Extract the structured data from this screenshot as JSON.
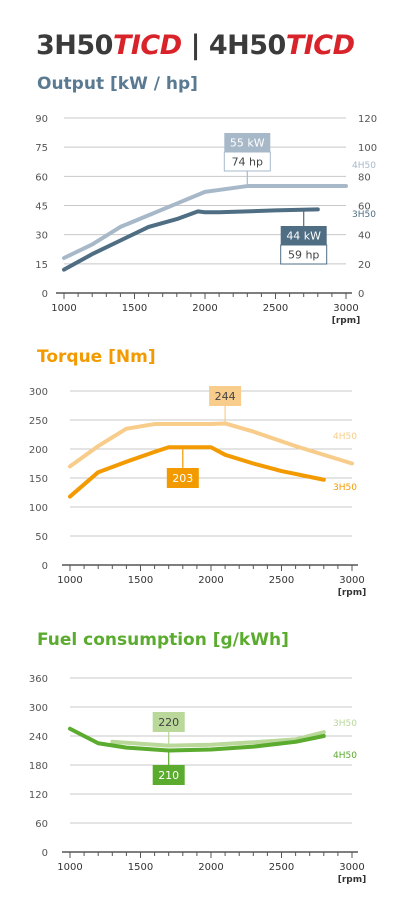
{
  "header": {
    "model_a": "3H50",
    "suffix_a": "TICD",
    "separator": " | ",
    "model_b": "4H50",
    "suffix_b": "TICD"
  },
  "colors": {
    "header_red": "#d8232a",
    "axis": "#555555",
    "grid": "#c8c8c8",
    "output_title": "#5a7a92",
    "output_4h50": "#a7b9c8",
    "output_3h50": "#4f6d83",
    "torque_title": "#f29a00",
    "torque_4h50": "#f8cc8a",
    "torque_3h50": "#f29a00",
    "fuel_title": "#5aab2e",
    "fuel_3h50": "#b9d89a",
    "fuel_4h50": "#5aab2e"
  },
  "chart_data": [
    {
      "type": "line",
      "title": "Output [kW / hp]",
      "xlabel": "[rpm]",
      "xlim": [
        1000,
        3000
      ],
      "x_ticks": [
        1000,
        1500,
        2000,
        2500,
        3000
      ],
      "ylim": [
        0,
        90
      ],
      "y_ticks": [
        0,
        15,
        30,
        45,
        60,
        75,
        90
      ],
      "y2lim": [
        0,
        120
      ],
      "y2_ticks": [
        0,
        20,
        40,
        60,
        80,
        100,
        120
      ],
      "grid": true,
      "series": [
        {
          "name": "4H50",
          "x": [
            1000,
            1200,
            1400,
            1600,
            1800,
            2000,
            2100,
            2300,
            2500,
            2800,
            3000
          ],
          "values": [
            18,
            25,
            34,
            40,
            46,
            52,
            53,
            55,
            55,
            55,
            55
          ]
        },
        {
          "name": "3H50",
          "x": [
            1000,
            1200,
            1400,
            1600,
            1800,
            1950,
            2000,
            2100,
            2300,
            2500,
            2800
          ],
          "values": [
            12,
            20,
            27,
            34,
            38,
            42,
            41.5,
            41.5,
            42,
            42.5,
            43
          ]
        }
      ],
      "annotations": [
        {
          "series": "4H50",
          "x": 2300,
          "primary": "55 kW",
          "secondary": "74 hp"
        },
        {
          "series": "3H50",
          "x": 2700,
          "primary": "44 kW",
          "secondary": "59 hp"
        }
      ]
    },
    {
      "type": "line",
      "title": "Torque [Nm]",
      "xlabel": "[rpm]",
      "xlim": [
        1000,
        3000
      ],
      "x_ticks": [
        1000,
        1500,
        2000,
        2500,
        3000
      ],
      "ylim": [
        0,
        300
      ],
      "y_ticks": [
        0,
        50,
        100,
        150,
        200,
        250,
        300
      ],
      "grid": true,
      "series": [
        {
          "name": "4H50",
          "x": [
            1000,
            1200,
            1400,
            1600,
            1800,
            2000,
            2100,
            2300,
            2600,
            3000
          ],
          "values": [
            170,
            205,
            235,
            243,
            243,
            243,
            244,
            230,
            205,
            175
          ]
        },
        {
          "name": "3H50",
          "x": [
            1000,
            1200,
            1400,
            1600,
            1700,
            1800,
            2000,
            2100,
            2300,
            2500,
            2800
          ],
          "values": [
            118,
            160,
            178,
            195,
            203,
            203,
            203,
            190,
            175,
            162,
            147
          ]
        }
      ],
      "annotations": [
        {
          "series": "4H50",
          "x": 2100,
          "primary": "244"
        },
        {
          "series": "3H50",
          "x": 1800,
          "primary": "203"
        }
      ]
    },
    {
      "type": "line",
      "title": "Fuel consumption [g/kWh]",
      "xlabel": "[rpm]",
      "xlim": [
        1000,
        3000
      ],
      "x_ticks": [
        1000,
        1500,
        2000,
        2500,
        3000
      ],
      "ylim": [
        0,
        360
      ],
      "y_ticks": [
        0,
        60,
        120,
        180,
        240,
        300,
        360
      ],
      "grid": true,
      "series": [
        {
          "name": "3H50",
          "x": [
            1300,
            1500,
            1700,
            2000,
            2300,
            2600,
            2800
          ],
          "values": [
            228,
            224,
            220,
            222,
            227,
            233,
            248
          ]
        },
        {
          "name": "4H50",
          "x": [
            1000,
            1200,
            1400,
            1700,
            2000,
            2300,
            2600,
            2800
          ],
          "values": [
            255,
            225,
            216,
            210,
            212,
            218,
            228,
            240
          ]
        }
      ],
      "annotations": [
        {
          "series": "3H50",
          "x": 1700,
          "primary": "220"
        },
        {
          "series": "4H50",
          "x": 1700,
          "primary": "210"
        }
      ]
    }
  ]
}
